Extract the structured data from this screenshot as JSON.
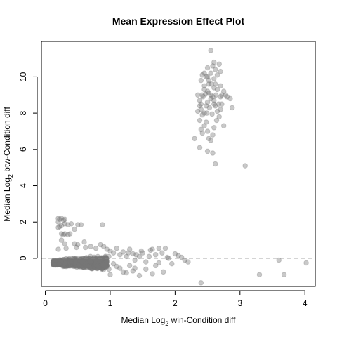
{
  "chart_data": {
    "type": "scatter",
    "title": "Mean Expression Effect Plot",
    "xlabel": {
      "pre": "Median  Log",
      "sub": "2",
      "post": "  win-Condition diff"
    },
    "ylabel": {
      "pre": "Median  Log",
      "sub": "2",
      "post": "  btw-Condition diff"
    },
    "xlim": [
      -0.06,
      4.16
    ],
    "ylim": [
      -1.55,
      11.95
    ],
    "xticks": [
      0,
      1,
      2,
      3,
      4
    ],
    "yticks": [
      0,
      2,
      4,
      6,
      8,
      10
    ],
    "reference_line_y": 0,
    "point_color": "#777777",
    "point_alpha": 0.4,
    "cluster_low": {
      "x_range": [
        0.12,
        0.95
      ],
      "y_mean": -0.25,
      "count": 1500
    },
    "points": [
      [
        0.2,
        2.2
      ],
      [
        0.22,
        2.15
      ],
      [
        0.25,
        2.2
      ],
      [
        0.28,
        2.1
      ],
      [
        0.3,
        2.15
      ],
      [
        0.2,
        2.0
      ],
      [
        0.22,
        1.75
      ],
      [
        0.25,
        1.8
      ],
      [
        0.3,
        1.9
      ],
      [
        0.35,
        1.85
      ],
      [
        0.4,
        1.9
      ],
      [
        0.2,
        1.7
      ],
      [
        0.28,
        1.3
      ],
      [
        0.3,
        1.35
      ],
      [
        0.35,
        1.3
      ],
      [
        0.38,
        1.35
      ],
      [
        0.25,
        1.35
      ],
      [
        0.45,
        1.6
      ],
      [
        0.5,
        1.85
      ],
      [
        0.55,
        1.85
      ],
      [
        0.88,
        1.85
      ],
      [
        0.25,
        1.0
      ],
      [
        0.3,
        0.8
      ],
      [
        0.2,
        0.5
      ],
      [
        0.32,
        0.55
      ],
      [
        0.45,
        0.8
      ],
      [
        0.5,
        0.75
      ],
      [
        0.48,
        0.6
      ],
      [
        0.6,
        0.9
      ],
      [
        0.62,
        0.6
      ],
      [
        0.7,
        0.65
      ],
      [
        0.78,
        0.55
      ],
      [
        0.85,
        0.75
      ],
      [
        0.9,
        0.65
      ],
      [
        0.95,
        0.5
      ],
      [
        1.0,
        0.4
      ],
      [
        0.98,
        0.1
      ],
      [
        1.05,
        0.3
      ],
      [
        1.1,
        0.55
      ],
      [
        1.15,
        0.2
      ],
      [
        1.2,
        0.35
      ],
      [
        1.25,
        0.1
      ],
      [
        1.28,
        0.3
      ],
      [
        1.3,
        0.5
      ],
      [
        1.35,
        0.25
      ],
      [
        1.38,
        -0.1
      ],
      [
        1.4,
        0.2
      ],
      [
        1.45,
        0.1
      ],
      [
        1.48,
        0.4
      ],
      [
        1.5,
        0.3
      ],
      [
        1.55,
        -0.2
      ],
      [
        1.6,
        0.1
      ],
      [
        1.62,
        0.45
      ],
      [
        1.65,
        0.5
      ],
      [
        1.7,
        0.2
      ],
      [
        1.75,
        0.55
      ],
      [
        1.8,
        0.3
      ],
      [
        1.85,
        0.55
      ],
      [
        1.88,
        0.05
      ],
      [
        1.9,
        0.0
      ],
      [
        1.95,
        -0.3
      ],
      [
        1.1,
        -0.45
      ],
      [
        1.15,
        -0.55
      ],
      [
        1.2,
        -0.75
      ],
      [
        1.25,
        -0.8
      ],
      [
        1.3,
        -0.4
      ],
      [
        1.35,
        -0.7
      ],
      [
        1.38,
        -0.55
      ],
      [
        1.45,
        -0.95
      ],
      [
        1.55,
        -0.6
      ],
      [
        1.65,
        -0.85
      ],
      [
        1.7,
        -0.4
      ],
      [
        1.75,
        -0.25
      ],
      [
        1.82,
        -0.75
      ],
      [
        1.0,
        -0.9
      ],
      [
        0.98,
        -0.6
      ],
      [
        1.05,
        -0.3
      ],
      [
        2.0,
        0.25
      ],
      [
        2.05,
        0.15
      ],
      [
        2.1,
        0.05
      ],
      [
        2.15,
        -0.1
      ],
      [
        2.2,
        -0.2
      ],
      [
        2.4,
        -1.35
      ],
      [
        3.3,
        -0.9
      ],
      [
        3.6,
        -0.1
      ],
      [
        3.68,
        -0.9
      ],
      [
        4.02,
        -0.25
      ],
      [
        2.4,
        8.5
      ],
      [
        2.42,
        9.0
      ],
      [
        2.45,
        9.5
      ],
      [
        2.48,
        10.0
      ],
      [
        2.5,
        10.5
      ],
      [
        2.52,
        9.8
      ],
      [
        2.55,
        10.2
      ],
      [
        2.58,
        10.6
      ],
      [
        2.6,
        10.8
      ],
      [
        2.62,
        10.4
      ],
      [
        2.65,
        10.1
      ],
      [
        2.68,
        10.7
      ],
      [
        2.7,
        10.3
      ],
      [
        2.55,
        11.45
      ],
      [
        2.45,
        10.2
      ],
      [
        2.4,
        9.8
      ],
      [
        2.42,
        10.1
      ],
      [
        2.5,
        10.0
      ],
      [
        2.52,
        9.6
      ],
      [
        2.6,
        9.4
      ],
      [
        2.62,
        9.6
      ],
      [
        2.65,
        9.3
      ],
      [
        2.7,
        9.5
      ],
      [
        2.72,
        9.0
      ],
      [
        2.75,
        9.2
      ],
      [
        2.78,
        9.0
      ],
      [
        2.8,
        8.9
      ],
      [
        2.85,
        8.8
      ],
      [
        2.88,
        8.3
      ],
      [
        2.35,
        9.0
      ],
      [
        2.38,
        8.7
      ],
      [
        2.4,
        8.2
      ],
      [
        2.42,
        7.9
      ],
      [
        2.45,
        8.0
      ],
      [
        2.48,
        8.4
      ],
      [
        2.5,
        8.6
      ],
      [
        2.52,
        9.1
      ],
      [
        2.55,
        9.0
      ],
      [
        2.58,
        8.9
      ],
      [
        2.6,
        8.7
      ],
      [
        2.62,
        8.4
      ],
      [
        2.65,
        8.1
      ],
      [
        2.68,
        7.8
      ],
      [
        2.7,
        8.2
      ],
      [
        2.72,
        8.5
      ],
      [
        2.75,
        7.3
      ],
      [
        2.38,
        7.6
      ],
      [
        2.4,
        7.1
      ],
      [
        2.42,
        6.9
      ],
      [
        2.45,
        7.3
      ],
      [
        2.48,
        7.5
      ],
      [
        2.5,
        7.0
      ],
      [
        2.52,
        6.6
      ],
      [
        2.55,
        6.5
      ],
      [
        2.58,
        6.8
      ],
      [
        2.6,
        7.2
      ],
      [
        2.3,
        6.6
      ],
      [
        2.38,
        6.1
      ],
      [
        2.5,
        5.9
      ],
      [
        2.58,
        5.8
      ],
      [
        2.62,
        5.2
      ],
      [
        2.45,
        9.3
      ],
      [
        2.5,
        9.2
      ],
      [
        2.55,
        8.8
      ],
      [
        2.6,
        8.5
      ],
      [
        2.35,
        8.1
      ],
      [
        2.38,
        8.4
      ],
      [
        2.6,
        9.9
      ],
      [
        2.63,
        9.0
      ],
      [
        2.67,
        8.5
      ],
      [
        2.56,
        9.6
      ],
      [
        2.47,
        9.05
      ],
      [
        2.53,
        8.3
      ],
      [
        2.57,
        7.95
      ],
      [
        2.64,
        7.6
      ],
      [
        2.7,
        8.9
      ],
      [
        2.43,
        8.9
      ],
      [
        2.49,
        8.0
      ],
      [
        3.08,
        5.1
      ]
    ]
  }
}
